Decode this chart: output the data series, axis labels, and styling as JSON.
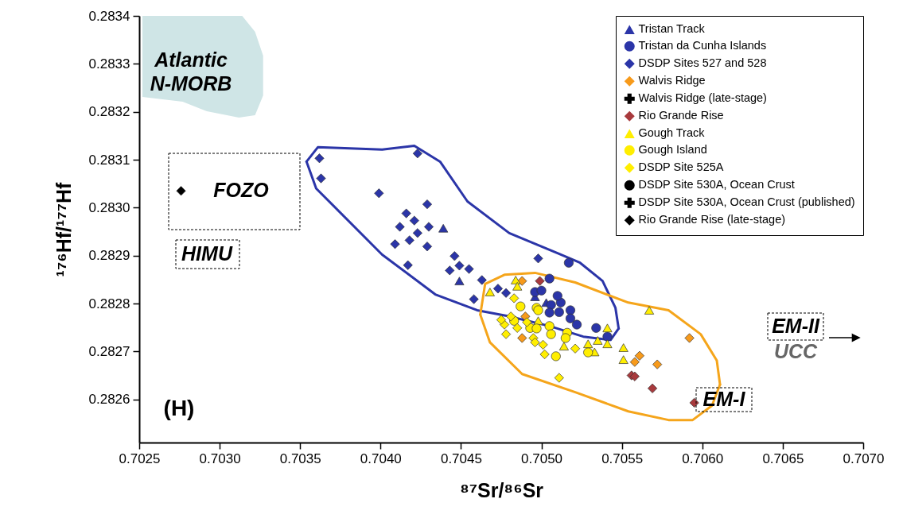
{
  "chart_data": {
    "type": "scatter",
    "xlabel": "⁸⁷Sr/⁸⁶Sr",
    "ylabel": "¹⁷⁶Hf/¹⁷⁷Hf",
    "xlim": [
      0.7025,
      0.707
    ],
    "ylim": [
      0.28251,
      0.2834
    ],
    "xticks": [
      0.7025,
      {
        "value": 0.703,
        "label": "0.7030"
      },
      0.7035,
      {
        "value": 0.704,
        "label": "0.7040"
      },
      0.7045,
      {
        "value": 0.705,
        "label": "0.7050"
      },
      0.7055,
      {
        "value": 0.706,
        "label": "0.7060"
      },
      0.7065,
      {
        "value": 0.707,
        "label": "0.7070"
      }
    ],
    "yticks": [
      0.2826,
      0.2827,
      0.2828,
      0.2829,
      {
        "value": 0.283,
        "label": "0.2830"
      },
      0.2831,
      0.2832,
      0.2833,
      0.2834
    ],
    "legend": "top right",
    "series": [
      {
        "type": "area",
        "color": "#cfe5e6",
        "x": [
          0.70252,
          0.70314,
          0.70322,
          0.70327,
          0.70327,
          0.70322,
          0.70312,
          0.70292,
          0.70277,
          0.70252
        ],
        "values": [
          0.2834,
          0.2834,
          0.283367,
          0.283317,
          0.283234,
          0.283193,
          0.283188,
          0.283201,
          0.283221,
          0.283231
        ]
      },
      {
        "type": "line",
        "color": "#2b35a8",
        "x": [
          0.70354,
          0.70361,
          0.70401,
          0.70421,
          0.70437,
          0.70454,
          0.7048,
          0.7051,
          0.70524,
          0.70538,
          0.70546,
          0.70548
        ],
        "values": [
          0.283096,
          0.283126,
          0.283121,
          0.283129,
          0.283096,
          0.283013,
          0.282947,
          0.282905,
          0.282885,
          0.282847,
          0.282791,
          0.282748
        ]
      },
      {
        "type": "line",
        "color": "#2b35a8",
        "x": [
          0.70354,
          0.7036,
          0.70401,
          0.70434,
          0.7046,
          0.70479,
          0.70505,
          0.70526,
          0.70543,
          0.70548
        ],
        "values": [
          0.283096,
          0.28304,
          0.282902,
          0.282819,
          0.282786,
          0.282774,
          0.282753,
          0.282731,
          0.282724,
          0.282748
        ]
      },
      {
        "type": "line",
        "color": "#f5a51b",
        "x": [
          0.70462,
          0.70465,
          0.70477,
          0.70496,
          0.70521,
          0.70554,
          0.70579,
          0.70599,
          0.70609,
          0.70611
        ],
        "values": [
          0.282777,
          0.282841,
          0.28286,
          0.282864,
          0.282844,
          0.282802,
          0.282786,
          0.282736,
          0.282681,
          0.282631
        ]
      },
      {
        "type": "line",
        "color": "#f5a51b",
        "x": [
          0.70462,
          0.70468,
          0.70488,
          0.70521,
          0.70554,
          0.70579,
          0.70594,
          0.70606,
          0.70611
        ],
        "values": [
          0.282777,
          0.282719,
          0.282653,
          0.282615,
          0.282575,
          0.282557,
          0.282557,
          0.282587,
          0.282631
        ]
      },
      {
        "name": "Tristan Track",
        "color": "#2b35a8",
        "marker": "triangle",
        "x": [
          0.70439,
          0.70449,
          0.70496,
          0.70503
        ],
        "values": [
          0.282957,
          0.282847,
          0.282814,
          0.282802
        ]
      },
      {
        "name": "Tristan da Cunha Islands",
        "color": "#2b35a8",
        "marker": "circle",
        "x": [
          0.70517,
          0.70505,
          0.70496,
          0.70512,
          0.70518,
          0.70506,
          0.70518,
          0.70522,
          0.70534,
          0.70541,
          0.70505,
          0.70511,
          0.705,
          0.7051
        ],
        "values": [
          0.282885,
          0.282852,
          0.282824,
          0.282802,
          0.282786,
          0.282797,
          0.282769,
          0.282756,
          0.282749,
          0.282731,
          0.282781,
          0.282782,
          0.282827,
          0.282816
        ]
      },
      {
        "name": "DSDP Sites 527 and 528",
        "color": "#2b35a8",
        "marker": "diamond",
        "x": [
          0.70362,
          0.70363,
          0.70423,
          0.70399,
          0.70429,
          0.70416,
          0.70421,
          0.70412,
          0.7043,
          0.70423,
          0.70418,
          0.70409,
          0.70429,
          0.70417,
          0.70446,
          0.70449,
          0.70443,
          0.70455,
          0.70463,
          0.70458,
          0.70473,
          0.70498,
          0.70478
        ],
        "values": [
          0.283103,
          0.283061,
          0.283113,
          0.28303,
          0.283007,
          0.282988,
          0.282973,
          0.28296,
          0.28296,
          0.282947,
          0.282932,
          0.282924,
          0.282919,
          0.28288,
          0.282899,
          0.282879,
          0.282869,
          0.282872,
          0.282849,
          0.282809,
          0.282831,
          0.282894,
          0.282822
        ]
      },
      {
        "name": "Walvis Ridge",
        "color": "#f79a1b",
        "marker": "diamond",
        "x": [
          0.70488,
          0.7049,
          0.70488,
          0.70558,
          0.70561,
          0.70572,
          0.70592
        ],
        "values": [
          0.282847,
          0.282773,
          0.282728,
          0.282678,
          0.282691,
          0.282673,
          0.282728
        ]
      },
      {
        "name": "Walvis Ridge (late-stage)",
        "color": "#000000",
        "marker": "cross"
      },
      {
        "name": "Rio Grande Rise",
        "color": "#a83a3d",
        "marker": "diamond",
        "x": [
          0.70499,
          0.70556,
          0.70558,
          0.70569,
          0.70595
        ],
        "values": [
          0.282847,
          0.28265,
          0.282648,
          0.282623,
          0.282593
        ]
      },
      {
        "name": "Gough Track",
        "color": "#ffee00",
        "marker": "triangle",
        "x": [
          0.70468,
          0.70484,
          0.70485,
          0.70498,
          0.70514,
          0.70529,
          0.70533,
          0.70535,
          0.70541,
          0.70541,
          0.70551,
          0.70551,
          0.70567
        ],
        "values": [
          0.282824,
          0.282849,
          0.282836,
          0.282764,
          0.282711,
          0.282716,
          0.282699,
          0.282723,
          0.282749,
          0.282716,
          0.282708,
          0.282683,
          0.282786
        ]
      },
      {
        "name": "Gough Island",
        "color": "#ffee00",
        "marker": "circle",
        "x": [
          0.70487,
          0.70497,
          0.70493,
          0.70505,
          0.70506,
          0.70516,
          0.70515,
          0.70509,
          0.70529,
          0.70497,
          0.70483,
          0.70498
        ],
        "values": [
          0.282794,
          0.282791,
          0.282749,
          0.282753,
          0.282736,
          0.282739,
          0.282728,
          0.28269,
          0.282698,
          0.282748,
          0.282764,
          0.282786
        ]
      },
      {
        "name": "DSDP Site 525A",
        "color": "#ffee00",
        "marker": "diamond",
        "x": [
          0.70477,
          0.70481,
          0.70485,
          0.70491,
          0.70483,
          0.70478,
          0.70495,
          0.70501,
          0.70502,
          0.70521,
          0.70511,
          0.70475,
          0.70496
        ],
        "values": [
          0.282756,
          0.282773,
          0.282749,
          0.282761,
          0.282811,
          0.282736,
          0.282728,
          0.282714,
          0.282694,
          0.282706,
          0.282645,
          0.282766,
          0.282719
        ]
      },
      {
        "name": "DSDP Site 530A, Ocean Crust",
        "color": "#000000",
        "marker": "circle"
      },
      {
        "name": "DSDP Site 530A, Ocean Crust (published)",
        "color": "#000000",
        "marker": "cross"
      },
      {
        "name": "Rio Grande Rise (late-stage)",
        "color": "#000000",
        "marker": "diamond",
        "x": [
          0.70276
        ],
        "values": [
          0.283035
        ]
      }
    ],
    "annotations": [
      "Atlantic N-MORB",
      "FOZO",
      "HIMU",
      "EM-I",
      "EM-II",
      "UCC",
      "(H)"
    ]
  }
}
